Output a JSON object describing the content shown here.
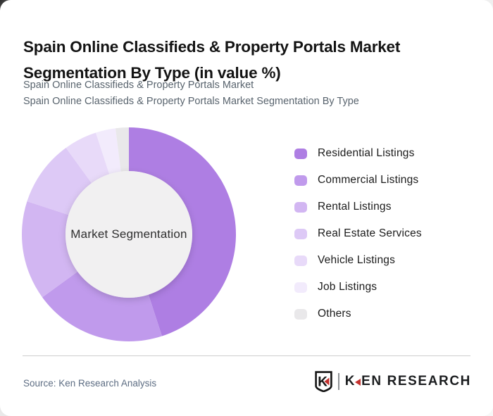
{
  "header": {
    "title": "Spain Online Classifieds & Property Portals Market Segmentation By Type (in value %)",
    "subtitle_line1": "Spain Online Classifieds & Property Portals Market",
    "subtitle_line2": "Spain Online Classifieds & Property Portals Market Segmentation By Type"
  },
  "chart_data": {
    "type": "pie",
    "variant": "donut",
    "title": "Spain Online Classifieds & Property Portals Market Segmentation By Type (in value %)",
    "unit": "value %",
    "center_label": "Market Segmentation",
    "start_angle_deg": 0,
    "direction": "clockwise",
    "inner_radius_ratio": 0.59,
    "legend_position": "right",
    "segments": [
      {
        "label": "Residential Listings",
        "value": 45,
        "color": "#ae7ee3"
      },
      {
        "label": "Commercial Listings",
        "value": 20,
        "color": "#c09aec"
      },
      {
        "label": "Rental Listings",
        "value": 15,
        "color": "#d2b6f2"
      },
      {
        "label": "Real Estate Services",
        "value": 10,
        "color": "#ddc9f6"
      },
      {
        "label": "Vehicle Listings",
        "value": 5,
        "color": "#e8daf9"
      },
      {
        "label": "Job Listings",
        "value": 3,
        "color": "#f2ebfc"
      },
      {
        "label": "Others",
        "value": 2,
        "color": "#e9e8ea"
      }
    ],
    "center_fill": "#f1f0f1"
  },
  "footer": {
    "source": "Source: Ken Research Analysis",
    "logo_text": "KEN RESEARCH",
    "logo_badge_letter": "K",
    "logo_accent_color": "#c4312e"
  }
}
